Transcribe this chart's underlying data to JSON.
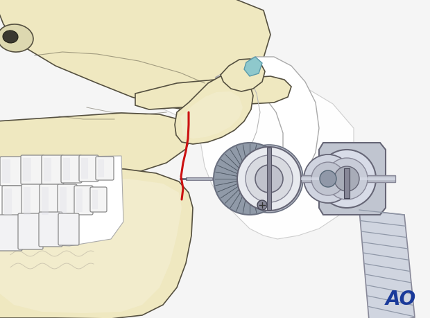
{
  "bg_color": "#f5f5f5",
  "skull_fill": "#efe8c0",
  "skull_fill2": "#e8dfa8",
  "skull_stroke": "#555040",
  "bone_light": "#f5f0d8",
  "white_area": "#ffffff",
  "fracture_color": "#cc1111",
  "device_knurl_fill": "#808898",
  "device_knurl_dark": "#606878",
  "device_light_gray": "#c8cdd8",
  "device_mid_gray": "#a8b0bc",
  "device_white": "#e8eaf0",
  "device_dark": "#6a7080",
  "teal_fill": "#8ec8cc",
  "teal_stroke": "#5a9aaa",
  "ao_color": "#1a3a9a",
  "ao_text": "AO"
}
